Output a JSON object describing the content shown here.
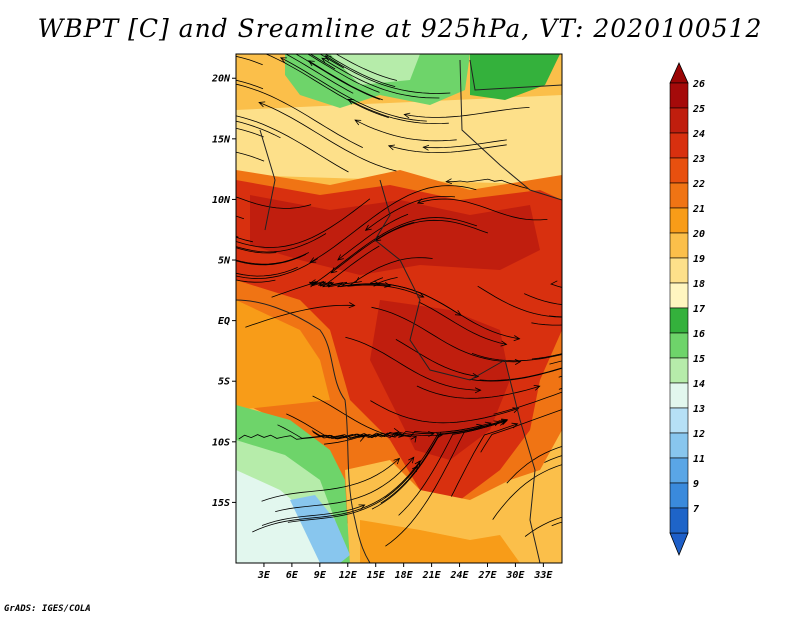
{
  "title": "WBPT [C] and Sreamline at 925hPa, VT: 2020100512",
  "credit": "GrADS: IGES/COLA",
  "map": {
    "lon_range": [
      0,
      35
    ],
    "lat_range": [
      -20,
      22
    ],
    "lat_ticks": [
      {
        "value": 20,
        "label": "20N"
      },
      {
        "value": 15,
        "label": "15N"
      },
      {
        "value": 10,
        "label": "10N"
      },
      {
        "value": 5,
        "label": "5N"
      },
      {
        "value": 0,
        "label": "EQ"
      },
      {
        "value": -5,
        "label": "5S"
      },
      {
        "value": -10,
        "label": "10S"
      },
      {
        "value": -15,
        "label": "15S"
      }
    ],
    "lon_ticks": [
      {
        "value": 3,
        "label": "3E"
      },
      {
        "value": 6,
        "label": "6E"
      },
      {
        "value": 9,
        "label": "9E"
      },
      {
        "value": 12,
        "label": "12E"
      },
      {
        "value": 15,
        "label": "15E"
      },
      {
        "value": 18,
        "label": "18E"
      },
      {
        "value": 21,
        "label": "21E"
      },
      {
        "value": 24,
        "label": "24E"
      },
      {
        "value": 27,
        "label": "27E"
      },
      {
        "value": 30,
        "label": "30E"
      },
      {
        "value": 33,
        "label": "33E"
      }
    ]
  },
  "colorbar": {
    "levels": [
      {
        "label": "26",
        "color": "#a50a0a"
      },
      {
        "label": "25",
        "color": "#c01e0e"
      },
      {
        "label": "24",
        "color": "#d8300f"
      },
      {
        "label": "23",
        "color": "#e8500f"
      },
      {
        "label": "22",
        "color": "#f07414"
      },
      {
        "label": "21",
        "color": "#f89c18"
      },
      {
        "label": "20",
        "color": "#fbbf4a"
      },
      {
        "label": "19",
        "color": "#fde08a"
      },
      {
        "label": "18",
        "color": "#fff6c0"
      },
      {
        "label": "17",
        "color": "#34b13c"
      },
      {
        "label": "16",
        "color": "#6ed46a"
      },
      {
        "label": "15",
        "color": "#b6ecaa"
      },
      {
        "label": "14",
        "color": "#e2f7ee"
      },
      {
        "label": "13",
        "color": "#b6e0f6"
      },
      {
        "label": "12",
        "color": "#88c6ee"
      },
      {
        "label": "11",
        "color": "#5aa6e6"
      },
      {
        "label": "9",
        "color": "#3a8adc"
      },
      {
        "label": "7",
        "color": "#1e64c8"
      }
    ],
    "top_arrow_color": "#9a0505",
    "bottom_arrow_color": "#1e5fc8"
  }
}
